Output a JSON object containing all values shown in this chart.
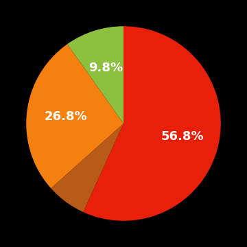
{
  "slices": [
    56.8,
    6.6,
    26.8,
    9.8
  ],
  "colors": [
    "#e8200a",
    "#b85a18",
    "#f58010",
    "#8ec040"
  ],
  "labels": [
    "56.8%",
    "",
    "26.8%",
    "9.8%"
  ],
  "label_colors": [
    "white",
    "white",
    "white",
    "white"
  ],
  "startangle": 90,
  "counterclock": false,
  "background_color": "#000000",
  "label_fontsize": 13,
  "label_fontweight": "bold",
  "label_radii": [
    0.62,
    0.0,
    0.6,
    0.6
  ]
}
